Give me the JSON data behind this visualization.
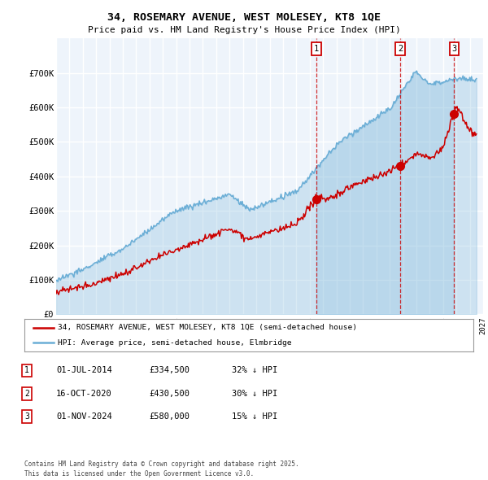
{
  "title": "34, ROSEMARY AVENUE, WEST MOLESEY, KT8 1QE",
  "subtitle": "Price paid vs. HM Land Registry's House Price Index (HPI)",
  "xlim_start": 1995.0,
  "xlim_end": 2027.0,
  "ylim": [
    0,
    800000
  ],
  "yticks": [
    0,
    100000,
    200000,
    300000,
    400000,
    500000,
    600000,
    700000
  ],
  "ytick_labels": [
    "£0",
    "£100K",
    "£200K",
    "£300K",
    "£400K",
    "£500K",
    "£600K",
    "£700K"
  ],
  "hpi_color": "#6baed6",
  "price_color": "#cc0000",
  "background_color": "#eef4fb",
  "grid_color": "#ffffff",
  "hpi_fill_color": "#aecde8",
  "transactions": [
    {
      "date_num": 2014.5,
      "price": 334500,
      "label": "1"
    },
    {
      "date_num": 2020.79,
      "price": 430500,
      "label": "2"
    },
    {
      "date_num": 2024.83,
      "price": 580000,
      "label": "3"
    }
  ],
  "legend_line1": "34, ROSEMARY AVENUE, WEST MOLESEY, KT8 1QE (semi-detached house)",
  "legend_line2": "HPI: Average price, semi-detached house, Elmbridge",
  "table_rows": [
    {
      "num": "1",
      "date": "01-JUL-2014",
      "price": "£334,500",
      "hpi": "32% ↓ HPI"
    },
    {
      "num": "2",
      "date": "16-OCT-2020",
      "price": "£430,500",
      "hpi": "30% ↓ HPI"
    },
    {
      "num": "3",
      "date": "01-NOV-2024",
      "price": "£580,000",
      "hpi": "15% ↓ HPI"
    }
  ],
  "footnote": "Contains HM Land Registry data © Crown copyright and database right 2025.\nThis data is licensed under the Open Government Licence v3.0."
}
